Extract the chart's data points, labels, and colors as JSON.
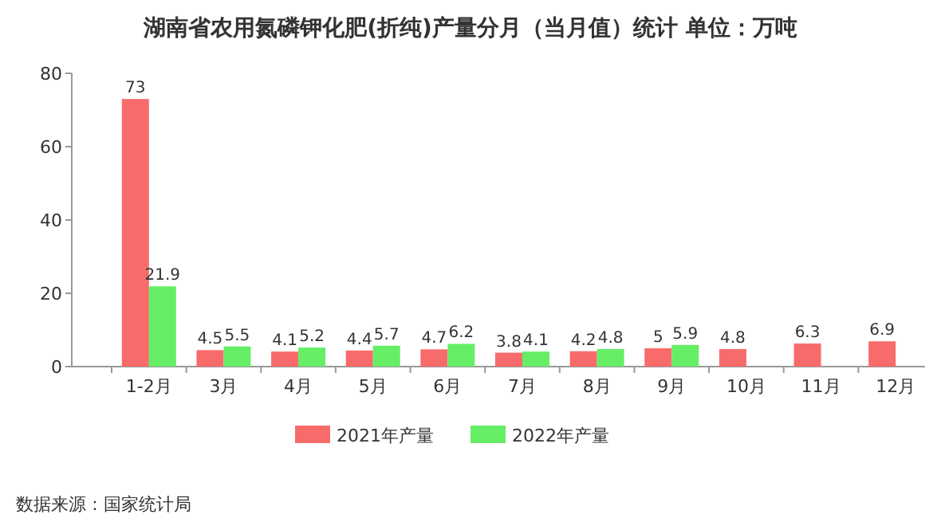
{
  "chart_data": {
    "type": "bar",
    "title": "湖南省农用氮磷钾化肥(折纯)产量分月（当月值）统计  单位：万吨",
    "categories": [
      "1-2月",
      "3月",
      "4月",
      "5月",
      "6月",
      "7月",
      "8月",
      "9月",
      "10月",
      "11月",
      "12月"
    ],
    "series": [
      {
        "name": "2021年产量",
        "color": "#f86b6b",
        "values": [
          73,
          4.5,
          4.1,
          4.4,
          4.7,
          3.8,
          4.2,
          5,
          4.8,
          6.3,
          6.9
        ]
      },
      {
        "name": "2022年产量",
        "color": "#66ee66",
        "values": [
          21.9,
          5.5,
          5.2,
          5.7,
          6.2,
          4.1,
          4.8,
          5.9,
          null,
          null,
          null
        ]
      }
    ],
    "ylim": [
      0,
      80
    ],
    "yticks": [
      0,
      20,
      40,
      60,
      80
    ],
    "data_labels": true,
    "legend": "bottom",
    "annotations": [
      "数据来源：国家统计局"
    ]
  }
}
